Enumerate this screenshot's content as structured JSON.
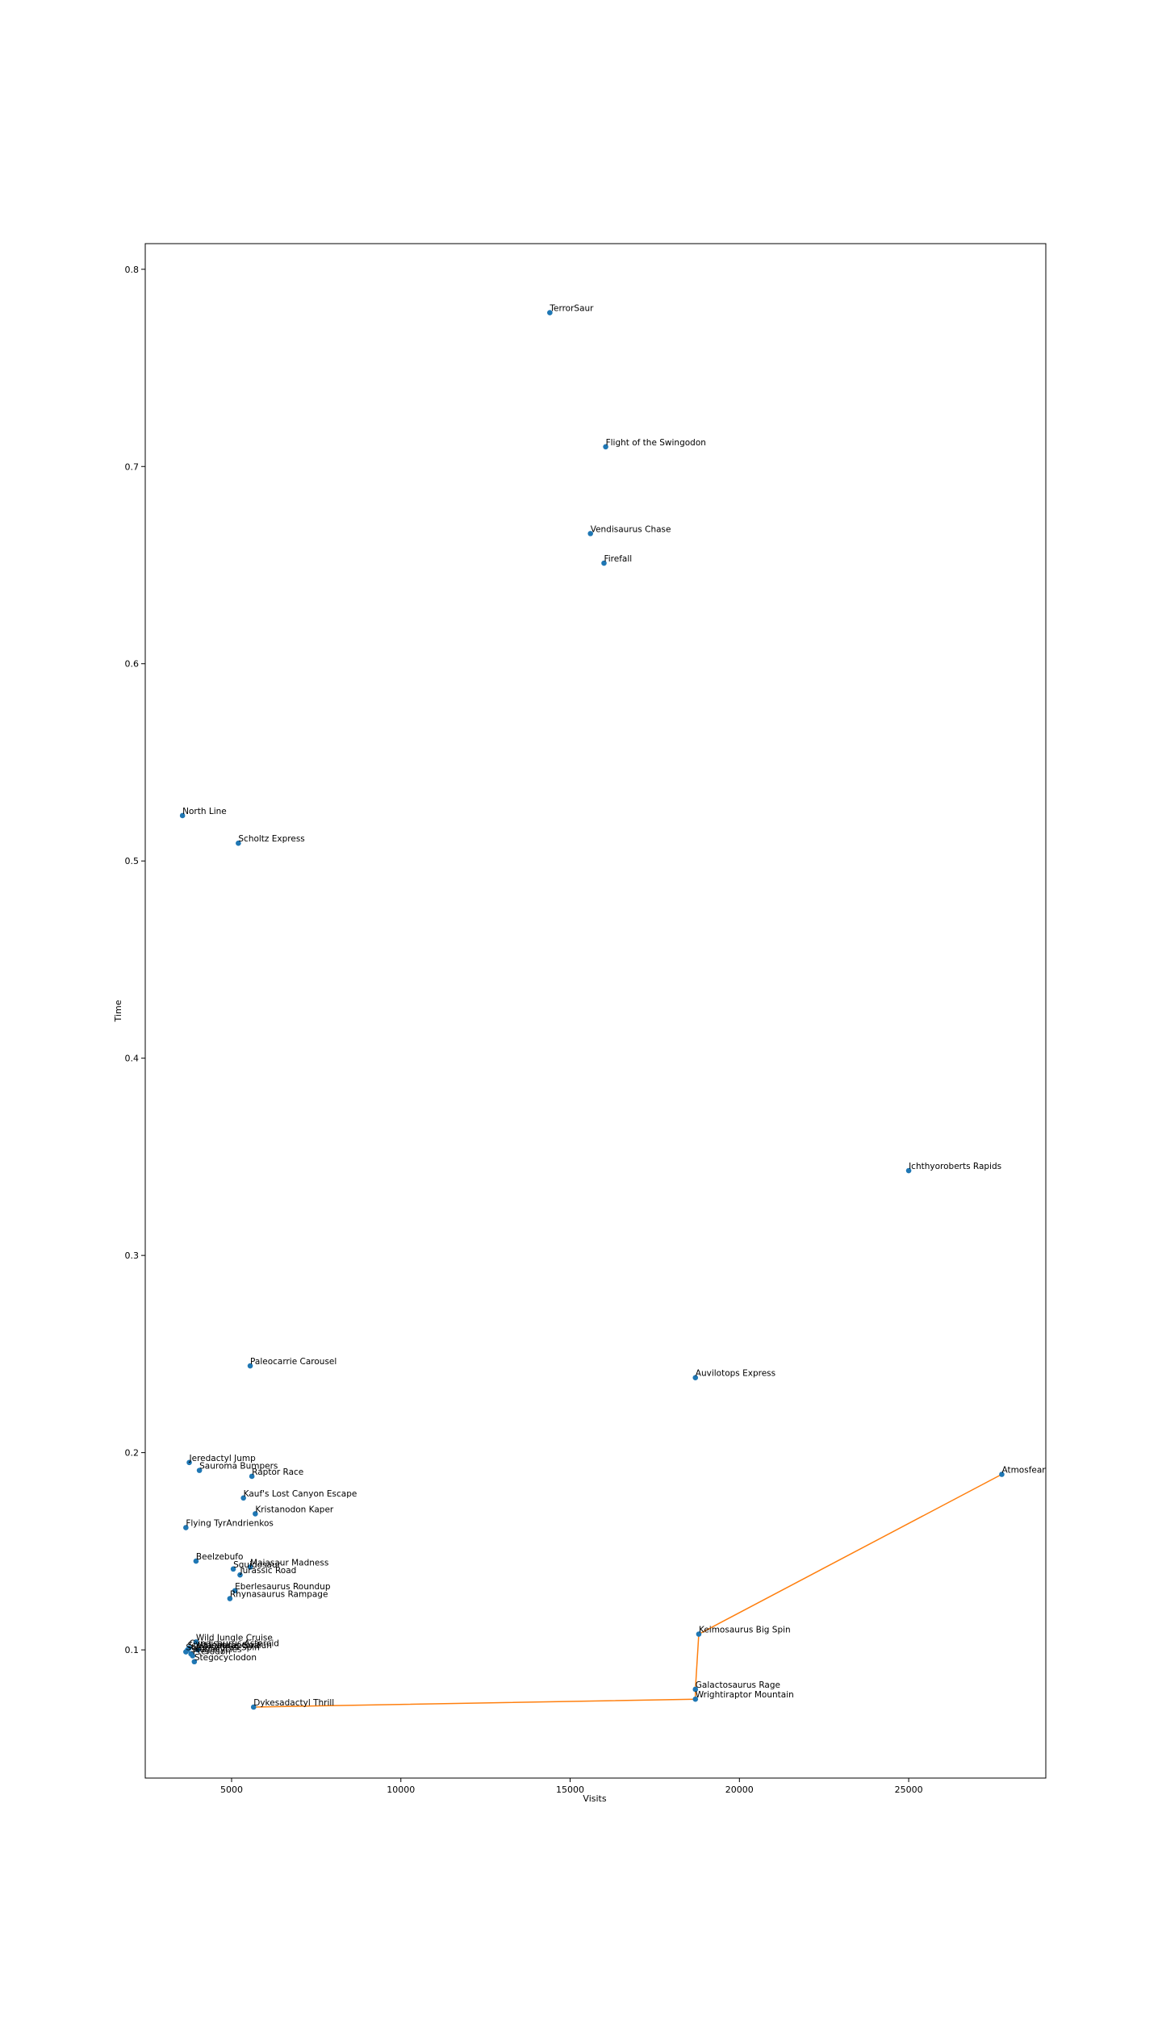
{
  "chart_data": {
    "type": "scatter",
    "title": "",
    "xlabel": "Visits",
    "ylabel": "Time",
    "xlim": [
      2450,
      29050
    ],
    "ylim": [
      0.035,
      0.813
    ],
    "xticks": [
      5000,
      10000,
      15000,
      20000,
      25000
    ],
    "yticks": [
      0.1,
      0.2,
      0.3,
      0.4,
      0.5,
      0.6,
      0.7,
      0.8
    ],
    "grid": false,
    "colors": {
      "points": "#1f77b4",
      "line": "#ff7f0e",
      "frame": "#000000"
    },
    "points": [
      {
        "label": "TerrorSaur",
        "x": 14400,
        "y": 0.778
      },
      {
        "label": "Flight of the Swingodon",
        "x": 16050,
        "y": 0.71
      },
      {
        "label": "Vendisaurus Chase",
        "x": 15600,
        "y": 0.666
      },
      {
        "label": "Firefall",
        "x": 16000,
        "y": 0.651
      },
      {
        "label": "North Line",
        "x": 3550,
        "y": 0.523
      },
      {
        "label": "Scholtz Express",
        "x": 5200,
        "y": 0.509
      },
      {
        "label": "Ichthyoroberts Rapids",
        "x": 25000,
        "y": 0.343
      },
      {
        "label": "Paleocarrie Carousel",
        "x": 5550,
        "y": 0.244
      },
      {
        "label": "Auvilotops Express",
        "x": 18700,
        "y": 0.238
      },
      {
        "label": "Atmosfear",
        "x": 27750,
        "y": 0.189
      },
      {
        "label": "Jeredactyl Jump",
        "x": 3750,
        "y": 0.195
      },
      {
        "label": "Sauroma Bumpers",
        "x": 4050,
        "y": 0.191
      },
      {
        "label": "Raptor Race",
        "x": 5600,
        "y": 0.188
      },
      {
        "label": "Kauf's Lost Canyon Escape",
        "x": 5350,
        "y": 0.177
      },
      {
        "label": "Kristanodon Kaper",
        "x": 5700,
        "y": 0.169
      },
      {
        "label": "Flying TyrAndrienkos",
        "x": 3650,
        "y": 0.162
      },
      {
        "label": "Beelzebufo",
        "x": 3950,
        "y": 0.145
      },
      {
        "label": "Squidosaur",
        "x": 5050,
        "y": 0.141
      },
      {
        "label": "Maiasaur Madness",
        "x": 5550,
        "y": 0.142
      },
      {
        "label": "Jurassic Road",
        "x": 5250,
        "y": 0.138
      },
      {
        "label": "Eberlesaurus Roundup",
        "x": 5100,
        "y": 0.13
      },
      {
        "label": "Rhynasaurus Rampage",
        "x": 4950,
        "y": 0.126
      },
      {
        "label": "Keimosaurus Big Spin",
        "x": 18800,
        "y": 0.108
      },
      {
        "label": "Wild Jungle Cruise",
        "x": 3950,
        "y": 0.104
      },
      {
        "label": "Cyndisaurus Asteroid",
        "x": 3750,
        "y": 0.101
      },
      {
        "label": "Wrightiraptor Fun",
        "x": 4000,
        "y": 0.1
      },
      {
        "label": "Stegocycles",
        "x": 3800,
        "y": 0.098
      },
      {
        "label": "Stegosaurus Spin",
        "x": 3650,
        "y": 0.099
      },
      {
        "label": "Stegasaurus Soar",
        "x": 3700,
        "y": 0.1
      },
      {
        "label": "Pterodon",
        "x": 3850,
        "y": 0.097
      },
      {
        "label": "Stegocyclodon",
        "x": 3900,
        "y": 0.094
      },
      {
        "label": "Galactosaurus Rage",
        "x": 18700,
        "y": 0.08
      },
      {
        "label": "Wrightiraptor Mountain",
        "x": 18700,
        "y": 0.075
      },
      {
        "label": "Dykesadactyl Thrill",
        "x": 5650,
        "y": 0.071
      }
    ],
    "path": [
      {
        "x": 5650,
        "y": 0.071
      },
      {
        "x": 18700,
        "y": 0.075
      },
      {
        "x": 18700,
        "y": 0.08
      },
      {
        "x": 18800,
        "y": 0.108
      },
      {
        "x": 27750,
        "y": 0.189
      }
    ]
  }
}
